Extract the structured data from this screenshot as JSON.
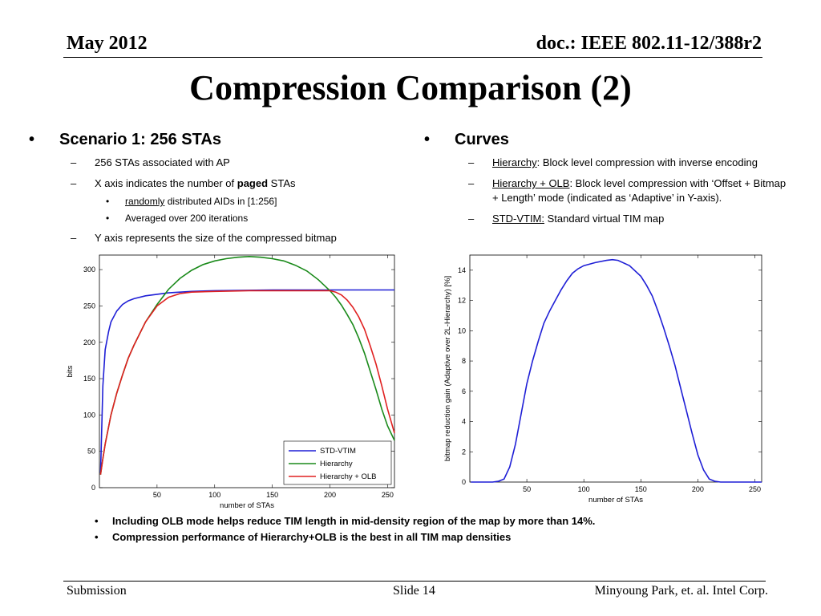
{
  "header": {
    "date": "May 2012",
    "doc": "doc.: IEEE 802.11-12/388r2"
  },
  "title": "Compression Comparison (2)",
  "left": {
    "heading": "Scenario 1: 256 STAs",
    "item1": "256 STAs associated with AP",
    "item2_pre": "X axis indicates the number of ",
    "item2_bold": "paged",
    "item2_post": " STAs",
    "sub1_u": "randomly",
    "sub1_rest": " distributed AIDs in [1:256]",
    "sub2": "Averaged over 200 iterations",
    "item3": "Y axis represents the size of the compressed bitmap"
  },
  "right": {
    "heading": "Curves",
    "c1_name": "Hierarchy",
    "c1_desc": ": Block level compression with inverse encoding",
    "c2_name": "Hierarchy + OLB",
    "c2_desc": ": Block level compression with ‘Offset + Bitmap + Length’ mode (indicated as ‘Adaptive’ in Y-axis).",
    "c3_name": "STD-VTIM:",
    "c3_desc": " Standard  virtual TIM map"
  },
  "bullets": [
    "Including OLB mode helps reduce TIM length in mid-density region of the map by more than 14%.",
    "Compression performance of Hierarchy+OLB is the best in all TIM map densities"
  ],
  "footer": {
    "left": "Submission",
    "center": "Slide 14",
    "right": "Minyoung Park, et. al. Intel Corp."
  },
  "chart_data": [
    {
      "type": "line",
      "xlabel": "number of STAs",
      "ylabel": "bits",
      "xlim": [
        0,
        256
      ],
      "ylim": [
        0,
        320
      ],
      "xticks": [
        50,
        100,
        150,
        200,
        250
      ],
      "yticks": [
        0,
        50,
        100,
        150,
        200,
        250,
        300
      ],
      "legend_position": "bottom-right",
      "series": [
        {
          "name": "STD-VTIM",
          "color": "#1f1fd6",
          "x": [
            1,
            3,
            5,
            8,
            10,
            15,
            20,
            25,
            30,
            40,
            50,
            60,
            70,
            80,
            100,
            150,
            200,
            256
          ],
          "y": [
            20,
            140,
            190,
            215,
            228,
            243,
            252,
            257,
            260,
            264,
            266,
            268,
            269,
            270,
            271,
            272,
            272,
            272
          ]
        },
        {
          "name": "Hierarchy",
          "color": "#1a8a1a",
          "x": [
            1,
            3,
            5,
            10,
            15,
            20,
            25,
            30,
            40,
            50,
            60,
            70,
            80,
            90,
            100,
            110,
            120,
            130,
            140,
            150,
            160,
            170,
            180,
            190,
            200,
            205,
            210,
            215,
            220,
            225,
            230,
            235,
            240,
            245,
            250,
            256
          ],
          "y": [
            18,
            40,
            60,
            100,
            130,
            155,
            178,
            196,
            228,
            252,
            273,
            288,
            299,
            307,
            312,
            315,
            317,
            318,
            317,
            315,
            312,
            306,
            298,
            286,
            271,
            262,
            251,
            238,
            224,
            206,
            185,
            160,
            135,
            108,
            85,
            65
          ]
        },
        {
          "name": "Hierarchy + OLB",
          "color": "#e02020",
          "x": [
            1,
            3,
            5,
            10,
            15,
            20,
            25,
            30,
            40,
            50,
            60,
            70,
            80,
            100,
            130,
            160,
            190,
            200,
            205,
            210,
            215,
            220,
            225,
            230,
            235,
            240,
            245,
            250,
            256
          ],
          "y": [
            18,
            40,
            60,
            100,
            130,
            155,
            178,
            196,
            228,
            250,
            262,
            267,
            269,
            270,
            271,
            271,
            271,
            271,
            269,
            265,
            258,
            248,
            235,
            218,
            195,
            170,
            140,
            108,
            75
          ]
        }
      ]
    },
    {
      "type": "line",
      "xlabel": "number of STAs",
      "ylabel": "bitmap reduction gain (Adaptive over 2L-Hierarchy) [%]",
      "xlim": [
        0,
        256
      ],
      "ylim": [
        0,
        15
      ],
      "xticks": [
        50,
        100,
        150,
        200,
        250
      ],
      "yticks": [
        0,
        2,
        4,
        6,
        8,
        10,
        12,
        14
      ],
      "series": [
        {
          "name": "",
          "color": "#1f1fd6",
          "x": [
            1,
            5,
            10,
            20,
            25,
            30,
            35,
            40,
            45,
            50,
            55,
            60,
            65,
            70,
            75,
            80,
            85,
            90,
            95,
            100,
            110,
            120,
            125,
            130,
            140,
            150,
            155,
            160,
            165,
            170,
            175,
            180,
            185,
            190,
            195,
            200,
            205,
            210,
            215,
            220,
            230,
            240,
            256
          ],
          "y": [
            0,
            0,
            0,
            0,
            0.05,
            0.2,
            1.0,
            2.5,
            4.5,
            6.5,
            8.0,
            9.3,
            10.5,
            11.3,
            12.0,
            12.7,
            13.3,
            13.8,
            14.1,
            14.3,
            14.5,
            14.65,
            14.7,
            14.65,
            14.3,
            13.6,
            13.0,
            12.3,
            11.3,
            10.2,
            9.0,
            7.7,
            6.2,
            4.7,
            3.2,
            1.8,
            0.8,
            0.2,
            0.05,
            0,
            0,
            0,
            0
          ]
        }
      ]
    }
  ]
}
